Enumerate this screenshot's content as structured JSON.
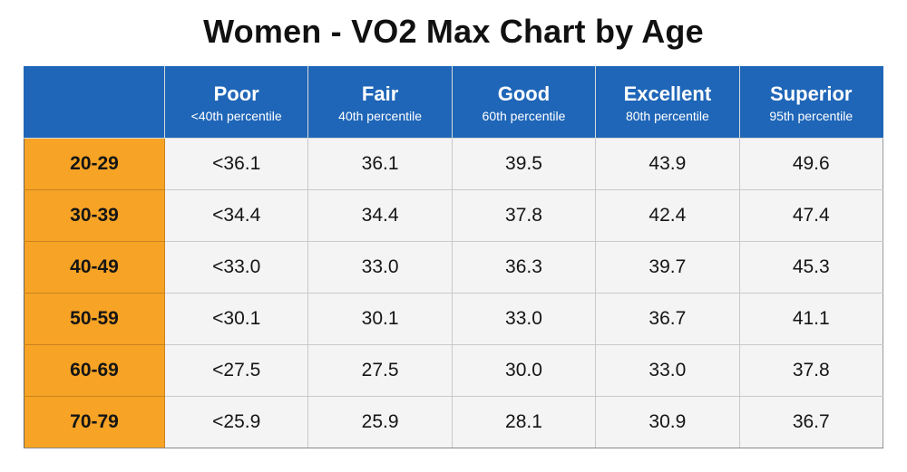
{
  "chart_data": {
    "type": "table",
    "title": "Women - VO2 Max Chart by Age",
    "columns": [
      {
        "name": "Poor",
        "sub": "<40th percentile"
      },
      {
        "name": "Fair",
        "sub": "40th percentile"
      },
      {
        "name": "Good",
        "sub": "60th percentile"
      },
      {
        "name": "Excellent",
        "sub": "80th percentile"
      },
      {
        "name": "Superior",
        "sub": "95th percentile"
      }
    ],
    "rows": [
      {
        "age": "20-29",
        "values": [
          "<36.1",
          "36.1",
          "39.5",
          "43.9",
          "49.6"
        ]
      },
      {
        "age": "30-39",
        "values": [
          "<34.4",
          "34.4",
          "37.8",
          "42.4",
          "47.4"
        ]
      },
      {
        "age": "40-49",
        "values": [
          "<33.0",
          "33.0",
          "36.3",
          "39.7",
          "45.3"
        ]
      },
      {
        "age": "50-59",
        "values": [
          "<30.1",
          "30.1",
          "33.0",
          "36.7",
          "41.1"
        ]
      },
      {
        "age": "60-69",
        "values": [
          "<27.5",
          "27.5",
          "30.0",
          "33.0",
          "37.8"
        ]
      },
      {
        "age": "70-79",
        "values": [
          "<25.9",
          "25.9",
          "28.1",
          "30.9",
          "36.7"
        ]
      }
    ]
  },
  "colors": {
    "header_bg": "#1f66b8",
    "header_text": "#ffffff",
    "age_bg": "#f7a325",
    "cell_bg": "#f4f4f4",
    "grid": "#c9c9c9"
  }
}
